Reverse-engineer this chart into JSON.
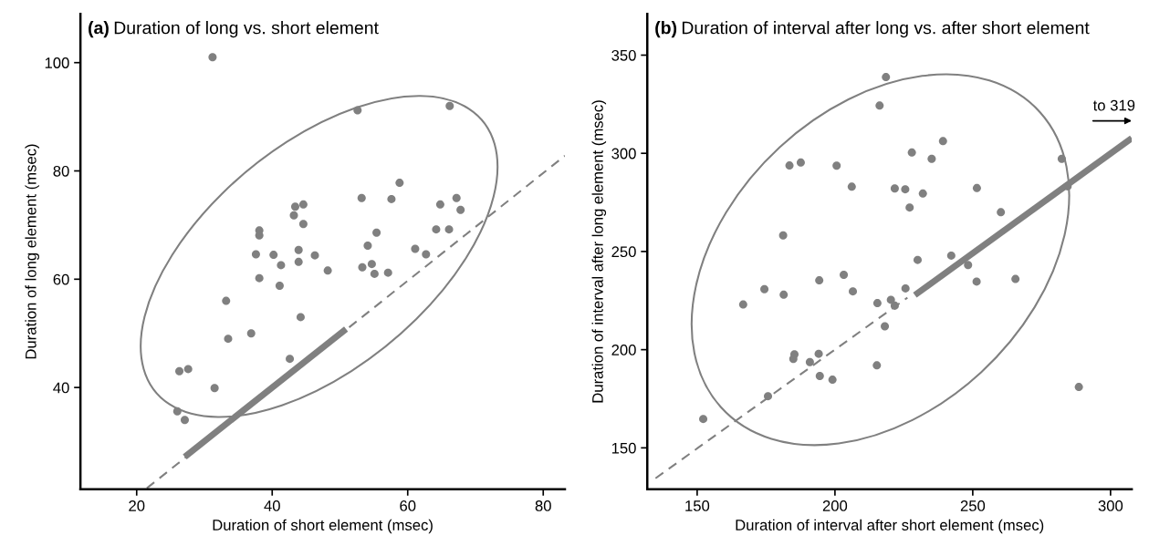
{
  "chart_data": [
    {
      "type": "scatter",
      "title": "(a) Duration of long vs. short element",
      "xlabel": "Duration of short element (msec)",
      "ylabel": "Duration of long element (msec)",
      "xlim": [
        11.7,
        83.2
      ],
      "ylim": [
        21.2,
        109
      ],
      "xticks": [
        20,
        40,
        60,
        80
      ],
      "yticks": [
        40,
        60,
        80,
        100
      ],
      "grid": false,
      "legend": false,
      "marker": "circle",
      "series": [
        {
          "color": "#808080",
          "x": [
            31.2,
            52.6,
            66.2,
            58.8,
            53.2,
            57.6,
            67.2,
            64.8,
            67.8,
            43.4,
            44.6,
            43.2,
            44.6,
            38.1,
            38.1,
            37.6,
            40.2,
            41.3,
            38.1,
            41.1,
            43.9,
            43.9,
            46.3,
            48.2,
            54.1,
            55.4,
            53.3,
            54.7,
            55.1,
            57.1,
            61.1,
            62.7,
            64.2,
            66.1,
            33.2,
            33.5,
            36.9,
            44.2,
            42.6,
            26.3,
            27.6,
            31.5,
            26.0,
            27.1
          ],
          "values": [
            101,
            91.2,
            92,
            77.8,
            75,
            74.8,
            75,
            73.8,
            72.8,
            73.4,
            73.8,
            71.8,
            70.2,
            69,
            68.1,
            64.6,
            64.5,
            62.6,
            60.2,
            58.8,
            65.4,
            63.2,
            64.4,
            61.6,
            66.2,
            68.6,
            62.2,
            62.8,
            61,
            61.2,
            65.6,
            64.6,
            69.2,
            69.2,
            56,
            49,
            50,
            53,
            45.3,
            43,
            43.4,
            39.9,
            35.6,
            34
          ]
        },
        {
          "type": "line",
          "color": "#808080",
          "line_style": "dashed",
          "marker": "none",
          "x": [
            21.5,
            83.2
          ],
          "values": [
            21.4,
            82.8
          ]
        },
        {
          "type": "line",
          "color": "#808080",
          "line_style": "solid",
          "marker": "none",
          "x": [
            27.1,
            50.9
          ],
          "values": [
            27.2,
            50.8
          ]
        }
      ]
    },
    {
      "type": "scatter",
      "title": "(b) Duration of interval after long vs. after short element",
      "xlabel": "Duration of interval after short element (msec)",
      "ylabel": "Duration of interval after long element (msec)",
      "xlim": [
        131.9,
        307.7
      ],
      "ylim": [
        128.9,
        371
      ],
      "xticks": [
        150,
        200,
        250,
        300
      ],
      "yticks": [
        150,
        200,
        250,
        300,
        350
      ],
      "grid": false,
      "legend": false,
      "marker": "circle",
      "annotations": [
        "to 319"
      ],
      "series": [
        {
          "color": "#808080",
          "x": [
            218.5,
            216.2,
            239.2,
            227.9,
            235.1,
            282.3,
            183.5,
            187.6,
            200.6,
            206.1,
            221.7,
            225.5,
            231.9,
            251.5,
            227.1,
            284.4,
            260.2,
            181.2,
            242.2,
            230.0,
            248.3,
            251.4,
            265.5,
            194.3,
            203.2,
            174.4,
            181.4,
            206.5,
            225.6,
            166.7,
            215.4,
            220.3,
            221.7,
            218.1,
            185.3,
            184.9,
            194.1,
            190.9,
            215.2,
            194.5,
            199.1,
            175.7,
            288.5,
            152.2
          ],
          "values": [
            338.8,
            324.3,
            306.2,
            300.4,
            297.2,
            297.2,
            293.8,
            295.3,
            293.7,
            283.0,
            282.1,
            281.7,
            279.5,
            282.3,
            272.4,
            283.2,
            270.0,
            258.2,
            247.9,
            245.7,
            243.1,
            234.7,
            236.0,
            235.3,
            238.1,
            230.8,
            228.0,
            229.7,
            231.2,
            223.0,
            223.7,
            225.4,
            222.4,
            211.9,
            197.6,
            195.3,
            197.9,
            193.7,
            192.0,
            186.6,
            184.7,
            176.3,
            181.0,
            164.7
          ]
        },
        {
          "type": "line",
          "color": "#808080",
          "line_style": "dashed",
          "marker": "none",
          "x": [
            134.9,
            226.3
          ],
          "values": [
            134.5,
            226.5
          ]
        },
        {
          "type": "line",
          "color": "#808080",
          "line_style": "solid",
          "marker": "none",
          "x": [
            229.0,
            307.7
          ],
          "values": [
            227.8,
            307.7
          ]
        }
      ]
    }
  ]
}
